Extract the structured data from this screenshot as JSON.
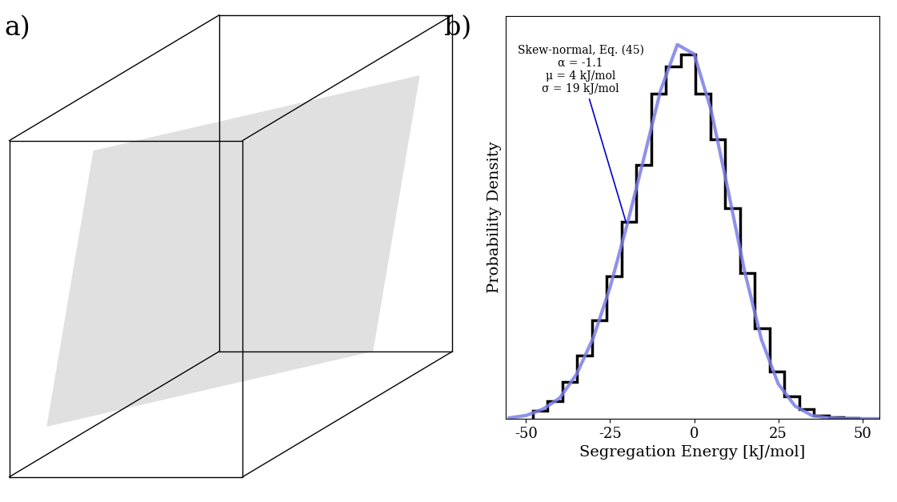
{
  "chart_data": [
    {
      "type": "rendering",
      "panel": "a)"
    },
    {
      "type": "histogram",
      "panel": "b)",
      "x_label": "Segregation Energy [kJ/mol]",
      "y_label": "Probability Density",
      "bins": [
        -48,
        -43.6,
        -39.2,
        -34.8,
        -30.4,
        -26,
        -21.6,
        -17.2,
        -12.8,
        -8.4,
        -4,
        0.4,
        4.8,
        9.2,
        13.6,
        18,
        22.4,
        26.8,
        31.2,
        35.6,
        40,
        44.4,
        48.8
      ],
      "counts": [
        0.0005,
        0.0011,
        0.0023,
        0.004,
        0.0062,
        0.009,
        0.0124,
        0.016,
        0.0205,
        0.0222,
        0.023,
        0.0205,
        0.0176,
        0.0133,
        0.0092,
        0.0057,
        0.003,
        0.0014,
        0.0006,
        0.0002,
        0.0001,
        5e-05
      ],
      "color": "#000000",
      "series": [
        {
          "name": "Skew-normal, Eq. (45)",
          "type": "line",
          "color": "#7b7fe6",
          "x": [
            -55,
            -50,
            -45,
            -40,
            -35,
            -30,
            -25,
            -20,
            -15,
            -10,
            -5,
            0,
            5,
            10,
            15,
            20,
            25,
            30,
            35,
            40,
            45,
            50,
            55
          ],
          "values": [
            5e-05,
            0.0002,
            0.0006,
            0.0013,
            0.0028,
            0.0051,
            0.0083,
            0.0122,
            0.0164,
            0.0207,
            0.0236,
            0.023,
            0.0195,
            0.0145,
            0.0093,
            0.005,
            0.0022,
            0.0008,
            0.0002,
            5e-05,
            1e-05,
            0.0,
            0.0
          ]
        }
      ],
      "annotation": [
        "Skew-normal, Eq. (45)",
        "α = -1.1",
        "μ = 4 kJ/mol",
        "σ = 19 kJ/mol"
      ],
      "xlim": [
        -56,
        55
      ],
      "xticks": [
        -50,
        -25,
        0,
        25,
        50
      ],
      "ylim": [
        0,
        0.0254
      ],
      "yticks": [],
      "tick_labels": "x"
    }
  ]
}
